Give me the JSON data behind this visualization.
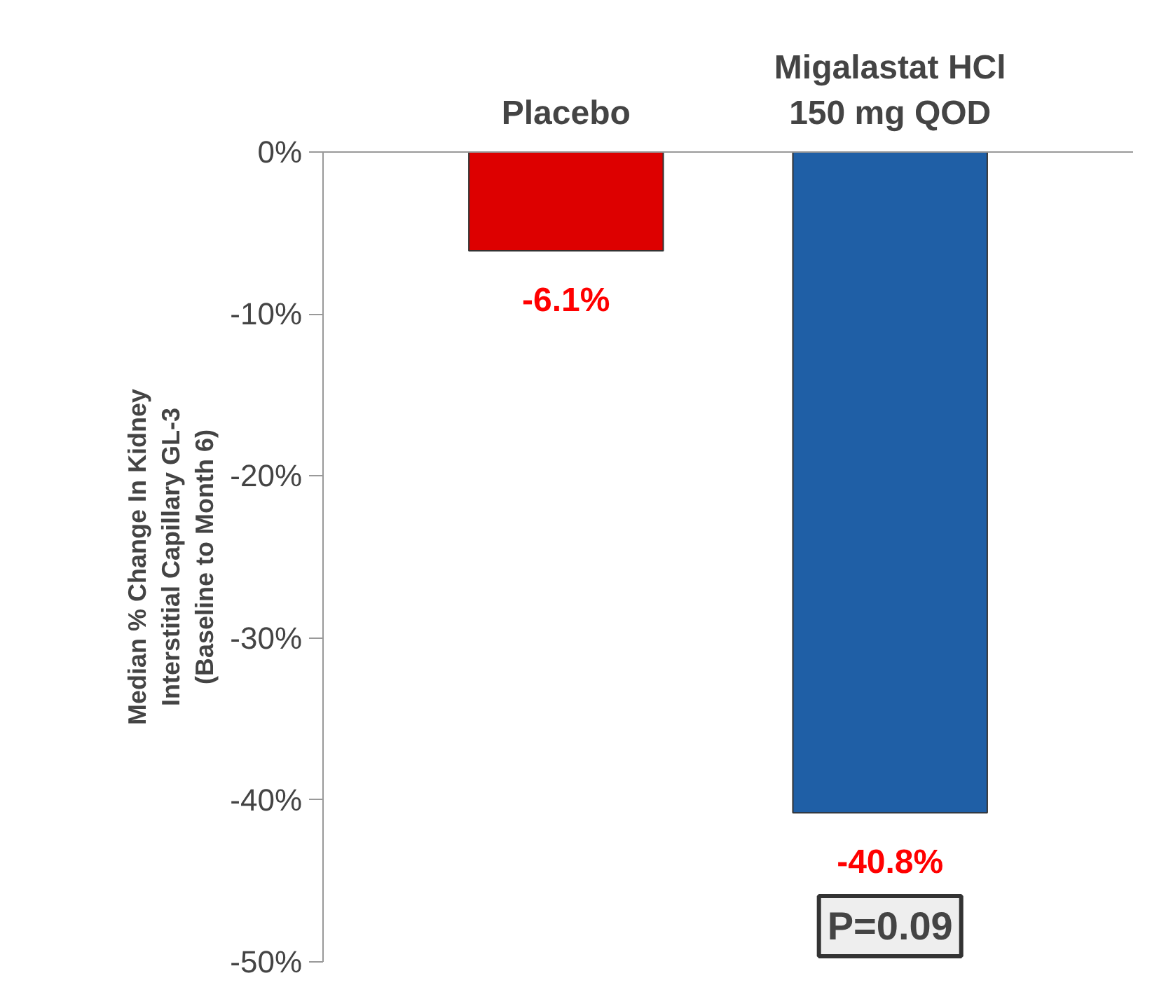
{
  "chart_data": {
    "type": "bar",
    "categories": [
      "Placebo",
      "Migalastat HCl\n150 mg QOD"
    ],
    "values": [
      -6.1,
      -40.8
    ],
    "colors": [
      "#dd0000",
      "#1f5fa6"
    ],
    "value_labels": [
      "-6.1%",
      "-40.8%"
    ],
    "ylabel": "Median % Change In Kidney\nInterstitial Capillary GL-3\n(Baseline to Month 6)",
    "ylim": [
      -50,
      0
    ],
    "yticks": [
      {
        "value": 0,
        "label": "0%"
      },
      {
        "value": -10,
        "label": "-10%"
      },
      {
        "value": -20,
        "label": "-20%"
      },
      {
        "value": -30,
        "label": "-30%"
      },
      {
        "value": -40,
        "label": "-40%"
      },
      {
        "value": -50,
        "label": "-50%"
      }
    ],
    "annotations": [
      "P=0.09"
    ],
    "grid": false
  }
}
